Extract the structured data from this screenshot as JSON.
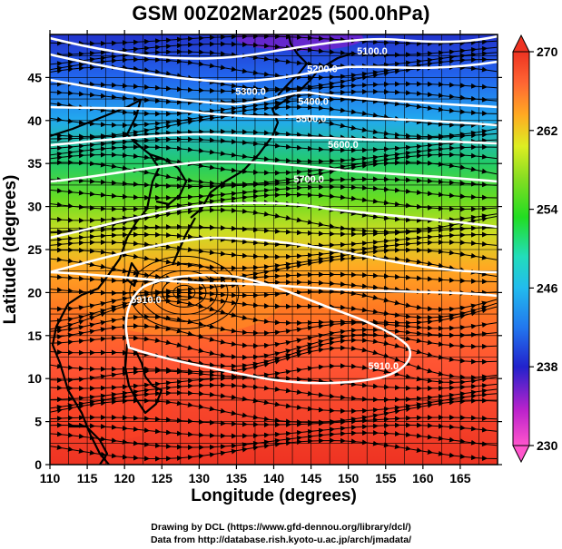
{
  "title": "GSM 00Z02Mar2025 (500.0hPa)",
  "x_axis_label": "Longitude (degrees)",
  "y_axis_label": "Latitude  (degrees)",
  "credits": [
    "Drawing by DCL (https://www.gfd-dennou.org/library/dcl/)",
    "Data from http://database.rish.kyoto-u.ac.jp/arch/jmadata/"
  ],
  "map": {
    "lon_range": [
      110,
      170
    ],
    "lat_range": [
      0,
      50
    ],
    "lon_ticks": [
      110,
      115,
      120,
      125,
      130,
      135,
      140,
      145,
      150,
      155,
      160,
      165
    ],
    "lat_ticks": [
      0,
      5,
      10,
      15,
      20,
      25,
      30,
      35,
      40,
      45
    ],
    "grid": true
  },
  "colorbar": {
    "variable": "temperature",
    "min": 230,
    "max": 270,
    "labels": [
      230,
      238,
      246,
      254,
      262,
      270
    ],
    "colors": [
      "#ff55cc",
      "#bb22cc",
      "#2222cc",
      "#2277ee",
      "#22bbee",
      "#22ddbb",
      "#22dd22",
      "#88dd22",
      "#ddee22",
      "#ffaa22",
      "#ff6633",
      "#ee3322"
    ]
  },
  "contours": {
    "line_color": "#ffffff",
    "labels": [
      {
        "text": "5100.0",
        "lon": 153.2,
        "lat": 47.7
      },
      {
        "text": "5200.0",
        "lon": 146.5,
        "lat": 45.6
      },
      {
        "text": "5300.0",
        "lon": 136.9,
        "lat": 43.0
      },
      {
        "text": "5400.0",
        "lon": 145.3,
        "lat": 41.8
      },
      {
        "text": "5500.0",
        "lon": 145.0,
        "lat": 39.8
      },
      {
        "text": "5600.0",
        "lon": 149.3,
        "lat": 36.8
      },
      {
        "text": "5700.0",
        "lon": 144.7,
        "lat": 32.8
      },
      {
        "text": "5910.0",
        "lon": 154.7,
        "lat": 11.1
      },
      {
        "text": "5910.0",
        "lon": 122.9,
        "lat": 18.8
      }
    ]
  }
}
